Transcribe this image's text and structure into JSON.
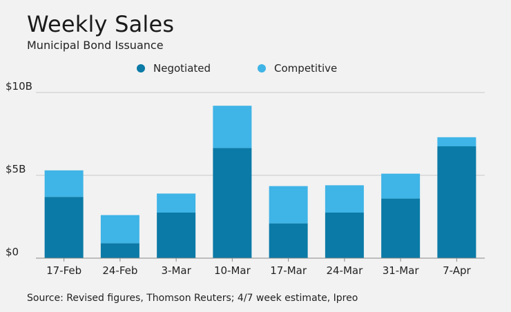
{
  "header": {
    "title": "Weekly Sales",
    "subtitle": "Municipal Bond Issuance"
  },
  "legend": {
    "items": [
      {
        "label": "Negotiated",
        "color": "#0b7aa6"
      },
      {
        "label": "Competitive",
        "color": "#3fb4e6"
      }
    ]
  },
  "footer": {
    "source": "Source: Revised figures, Thomson Reuters; 4/7 week estimate, Ipreo"
  },
  "chart_data": {
    "type": "bar",
    "stacked": true,
    "categories": [
      "17-Feb",
      "24-Feb",
      "3-Mar",
      "10-Mar",
      "17-Mar",
      "24-Mar",
      "31-Mar",
      "7-Apr"
    ],
    "series": [
      {
        "name": "Negotiated",
        "color": "#0b7aa6",
        "values": [
          3.7,
          0.9,
          2.75,
          6.65,
          2.1,
          2.75,
          3.6,
          6.75
        ]
      },
      {
        "name": "Competitive",
        "color": "#3fb4e6",
        "values": [
          1.6,
          1.7,
          1.15,
          2.55,
          2.25,
          1.65,
          1.5,
          0.55
        ]
      }
    ],
    "yticks": [
      {
        "value": 0,
        "label": "$0"
      },
      {
        "value": 5,
        "label": "$5B"
      },
      {
        "value": 10,
        "label": "$10B"
      }
    ],
    "ylim": [
      0,
      10
    ],
    "grid": true,
    "legend_position": "top"
  }
}
